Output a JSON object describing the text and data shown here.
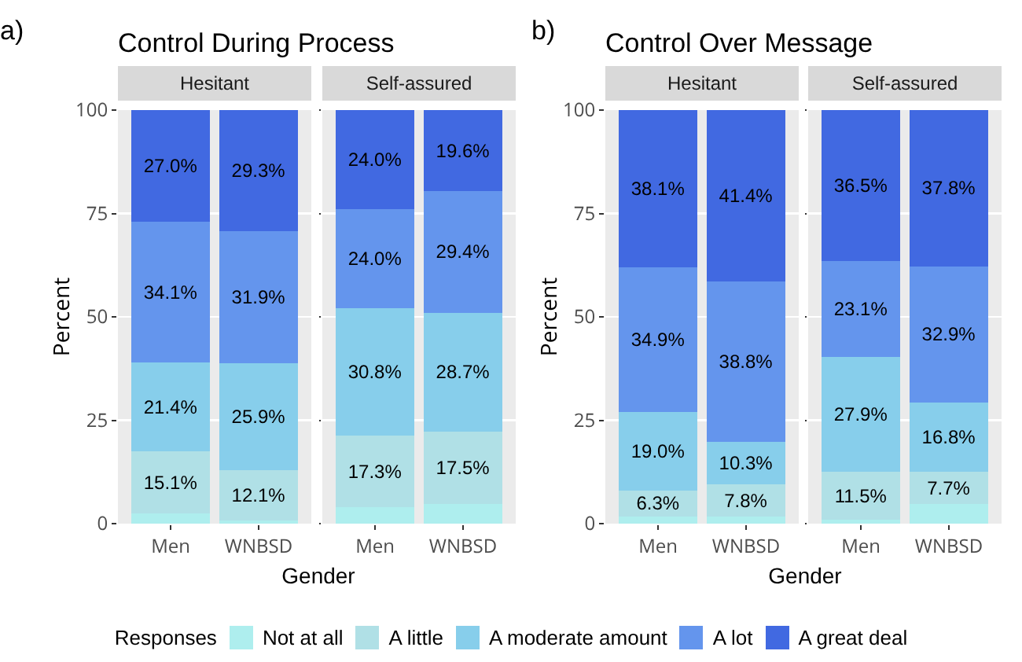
{
  "chart_data": [
    {
      "type": "bar",
      "stacked": true,
      "title": "Control During Process",
      "subtitle": "Hesitant",
      "ylabel": "Percent",
      "xlabel": "Gender",
      "legend_title": "Responses",
      "legend": "bottom",
      "annotations": [
        "a)"
      ],
      "grid": true,
      "categories": [
        "Men",
        "WNBSD"
      ],
      "ylim": [
        0,
        100
      ],
      "yticks": [
        0,
        25,
        50,
        75,
        100
      ],
      "series": [
        {
          "name": "Not at all",
          "color": "#aeeeee",
          "values": [
            2.4,
            0.8
          ],
          "value_labels": [
            null,
            null
          ]
        },
        {
          "name": "A little",
          "color": "#b0e0e6",
          "values": [
            15.1,
            12.1
          ],
          "value_labels": [
            "15.1%",
            "12.1%"
          ]
        },
        {
          "name": "A moderate amount",
          "color": "#87ceeb",
          "values": [
            21.4,
            25.9
          ],
          "value_labels": [
            "21.4%",
            "25.9%"
          ]
        },
        {
          "name": "A lot",
          "color": "#6495ed",
          "values": [
            34.1,
            31.9
          ],
          "value_labels": [
            "34.1%",
            "31.9%"
          ]
        },
        {
          "name": "A great deal",
          "color": "#4169e1",
          "values": [
            27.0,
            29.3
          ],
          "value_labels": [
            "27.0%",
            "29.3%"
          ]
        }
      ]
    },
    {
      "type": "bar",
      "stacked": true,
      "subtitle": "Self-assured",
      "grid": true,
      "tick_labels": "x",
      "categories": [
        "Men",
        "WNBSD"
      ],
      "ylim": [
        0,
        100
      ],
      "yticks": [
        0,
        25,
        50,
        75,
        100
      ],
      "series": [
        {
          "color": "#aeeeee",
          "values": [
            3.9,
            4.8
          ],
          "value_labels": [
            null,
            null
          ]
        },
        {
          "color": "#b0e0e6",
          "values": [
            17.3,
            17.5
          ],
          "value_labels": [
            "17.3%",
            "17.5%"
          ]
        },
        {
          "color": "#87ceeb",
          "values": [
            30.8,
            28.7
          ],
          "value_labels": [
            "30.8%",
            "28.7%"
          ]
        },
        {
          "color": "#6495ed",
          "values": [
            24.0,
            29.4
          ],
          "value_labels": [
            "24.0%",
            "29.4%"
          ]
        },
        {
          "color": "#4169e1",
          "values": [
            24.0,
            19.6
          ],
          "value_labels": [
            "24.0%",
            "19.6%"
          ]
        }
      ]
    },
    {
      "type": "bar",
      "stacked": true,
      "title": "Control Over Message",
      "subtitle": "Hesitant",
      "ylabel": "Percent",
      "xlabel": "Gender",
      "annotations": [
        "b)"
      ],
      "grid": true,
      "categories": [
        "Men",
        "WNBSD"
      ],
      "ylim": [
        0,
        100
      ],
      "yticks": [
        0,
        25,
        50,
        75,
        100
      ],
      "series": [
        {
          "color": "#aeeeee",
          "values": [
            1.7,
            1.7
          ],
          "value_labels": [
            null,
            null
          ]
        },
        {
          "color": "#b0e0e6",
          "values": [
            6.3,
            7.8
          ],
          "value_labels": [
            "6.3%",
            "7.8%"
          ]
        },
        {
          "color": "#87ceeb",
          "values": [
            19.0,
            10.3
          ],
          "value_labels": [
            "19.0%",
            "10.3%"
          ]
        },
        {
          "color": "#6495ed",
          "values": [
            34.9,
            38.8
          ],
          "value_labels": [
            "34.9%",
            "38.8%"
          ]
        },
        {
          "color": "#4169e1",
          "values": [
            38.1,
            41.4
          ],
          "value_labels": [
            "38.1%",
            "41.4%"
          ]
        }
      ]
    },
    {
      "type": "bar",
      "stacked": true,
      "subtitle": "Self-assured",
      "grid": true,
      "tick_labels": "x",
      "categories": [
        "Men",
        "WNBSD"
      ],
      "ylim": [
        0,
        100
      ],
      "yticks": [
        0,
        25,
        50,
        75,
        100
      ],
      "series": [
        {
          "color": "#aeeeee",
          "values": [
            1.0,
            4.8
          ],
          "value_labels": [
            null,
            null
          ]
        },
        {
          "color": "#b0e0e6",
          "values": [
            11.5,
            7.7
          ],
          "value_labels": [
            "11.5%",
            "7.7%"
          ]
        },
        {
          "color": "#87ceeb",
          "values": [
            27.9,
            16.8
          ],
          "value_labels": [
            "27.9%",
            "16.8%"
          ]
        },
        {
          "color": "#6495ed",
          "values": [
            23.1,
            32.9
          ],
          "value_labels": [
            "23.1%",
            "32.9%"
          ]
        },
        {
          "color": "#4169e1",
          "values": [
            36.5,
            37.8
          ],
          "value_labels": [
            "36.5%",
            "37.8%"
          ]
        }
      ]
    }
  ]
}
